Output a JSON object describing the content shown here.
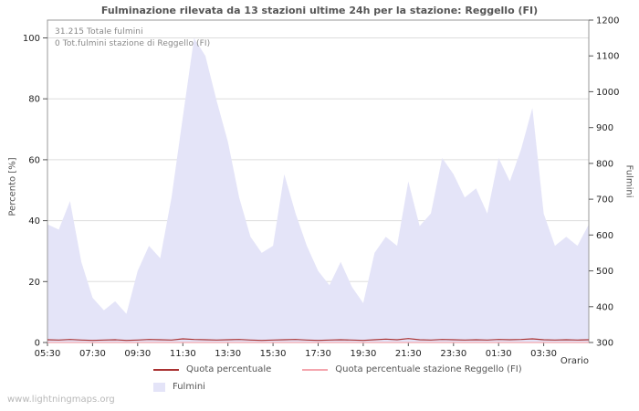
{
  "title": "Fulminazione rilevata da 13 stazioni ultime 24h per la stazione: Reggello (FI)",
  "watermark": "www.lightningmaps.org",
  "annotations": {
    "total": "31.215 Totale fulmini",
    "station_total": "0 Tot.fulmini stazione di Reggello (FI)"
  },
  "colors": {
    "area_fill": "#e4e4f8",
    "quota_line": "#aa3333",
    "station_line": "#f4a6ae",
    "grid": "#dddddd",
    "frame": "#999999",
    "text": "#555555"
  },
  "chart_data": {
    "type": "area",
    "title": "Fulminazione rilevata da 13 stazioni ultime 24h per la stazione: Reggello (FI)",
    "grid": true,
    "legend_position": "bottom",
    "x": [
      "05:30",
      "06:00",
      "06:30",
      "07:00",
      "07:30",
      "08:00",
      "08:30",
      "09:00",
      "09:30",
      "10:00",
      "10:30",
      "11:00",
      "11:30",
      "12:00",
      "12:30",
      "13:00",
      "13:30",
      "14:00",
      "14:30",
      "15:00",
      "15:30",
      "16:00",
      "16:30",
      "17:00",
      "17:30",
      "18:00",
      "18:30",
      "19:00",
      "19:30",
      "20:00",
      "20:30",
      "21:00",
      "21:30",
      "22:00",
      "22:30",
      "23:00",
      "23:30",
      "00:00",
      "00:30",
      "01:00",
      "01:30",
      "02:00",
      "02:30",
      "03:00",
      "03:30",
      "04:00",
      "04:30",
      "05:00",
      "05:30"
    ],
    "series": [
      {
        "name": "Fulmini",
        "type": "area",
        "axis": "right",
        "color": "#e4e4f8",
        "values": [
          630,
          615,
          695,
          525,
          425,
          390,
          415,
          380,
          500,
          570,
          535,
          705,
          930,
          1150,
          1100,
          975,
          860,
          705,
          595,
          550,
          570,
          770,
          660,
          570,
          500,
          460,
          525,
          455,
          410,
          550,
          595,
          570,
          750,
          625,
          660,
          815,
          770,
          705,
          730,
          660,
          815,
          750,
          840,
          955,
          660,
          570,
          595,
          570,
          630
        ]
      },
      {
        "name": "Quota percentuale",
        "type": "line",
        "axis": "left",
        "color": "#aa3333",
        "values": [
          0.9,
          0.8,
          1.0,
          0.8,
          0.7,
          0.8,
          0.9,
          0.7,
          0.8,
          1.0,
          0.9,
          0.8,
          1.2,
          1.0,
          0.9,
          0.8,
          0.9,
          1.0,
          0.8,
          0.7,
          0.8,
          0.9,
          1.0,
          0.8,
          0.7,
          0.8,
          0.9,
          0.8,
          0.7,
          0.9,
          1.1,
          0.9,
          1.3,
          0.9,
          0.8,
          1.0,
          0.9,
          0.8,
          0.9,
          0.8,
          1.0,
          0.9,
          1.0,
          1.2,
          0.9,
          0.8,
          0.9,
          0.8,
          0.9
        ]
      },
      {
        "name": "Quota percentuale stazione Reggello (FI)",
        "type": "line",
        "axis": "left",
        "color": "#f4a6ae",
        "values": [
          0,
          0,
          0,
          0,
          0,
          0,
          0,
          0,
          0,
          0,
          0,
          0,
          0,
          0,
          0,
          0,
          0,
          0,
          0,
          0,
          0,
          0,
          0,
          0,
          0,
          0,
          0,
          0,
          0,
          0,
          0,
          0,
          0,
          0,
          0,
          0,
          0,
          0,
          0,
          0,
          0,
          0,
          0,
          0,
          0,
          0,
          0,
          0,
          0
        ]
      }
    ],
    "left_axis": {
      "label": "Percento   [%]",
      "range": [
        0,
        100
      ],
      "ticks": [
        0,
        20,
        40,
        60,
        80,
        100
      ]
    },
    "right_axis": {
      "label": "Fulmini",
      "range": [
        300,
        1200
      ],
      "ticks": [
        300,
        400,
        500,
        600,
        700,
        800,
        900,
        1000,
        1100,
        1200
      ]
    },
    "x_axis": {
      "label": "Orario",
      "tick_labels": [
        "05:30",
        "07:30",
        "09:30",
        "11:30",
        "13:30",
        "15:30",
        "17:30",
        "19:30",
        "21:30",
        "23:30",
        "01:30",
        "03:30"
      ]
    }
  }
}
